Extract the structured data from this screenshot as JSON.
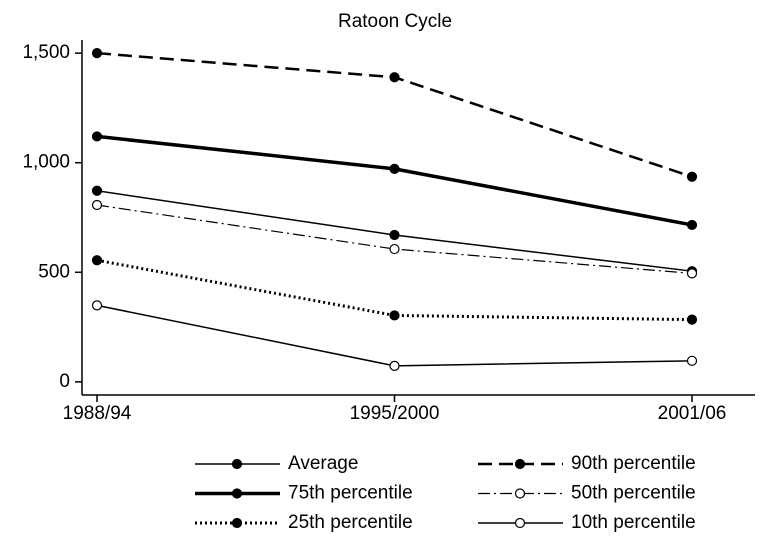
{
  "chart_data": {
    "type": "line",
    "title": "Ratoon Cycle",
    "categories": [
      "1988/94",
      "1995/2000",
      "2001/06"
    ],
    "series": [
      {
        "name": "Average",
        "color": "#000000",
        "width": 1.5,
        "dash": "solid",
        "marker_fill": "#000000",
        "values": [
          872,
          670,
          505
        ]
      },
      {
        "name": "90th percentile",
        "color": "#000000",
        "width": 2.5,
        "dash": "dashed",
        "marker_fill": "#000000",
        "values": [
          1500,
          1390,
          936
        ]
      },
      {
        "name": "75th percentile",
        "color": "#000000",
        "width": 3.5,
        "dash": "solid",
        "marker_fill": "#000000",
        "values": [
          1120,
          972,
          716
        ]
      },
      {
        "name": "50th percentile",
        "color": "#000000",
        "width": 1.2,
        "dash": "dashdot",
        "marker_fill": "#ffffff",
        "values": [
          807,
          606,
          495
        ]
      },
      {
        "name": "25th percentile",
        "color": "#000000",
        "width": 3,
        "dash": "dotted",
        "marker_fill": "#000000",
        "values": [
          555,
          303,
          284
        ]
      },
      {
        "name": "10th percentile",
        "color": "#000000",
        "width": 1.5,
        "dash": "solid",
        "marker_fill": "#ffffff",
        "values": [
          349,
          73,
          96
        ]
      }
    ],
    "ylim": [
      -60,
      1560
    ],
    "yticks": [
      0,
      500,
      {
        "value": 1000,
        "label": "1,000"
      },
      {
        "value": 1500,
        "label": "1,500"
      }
    ]
  }
}
